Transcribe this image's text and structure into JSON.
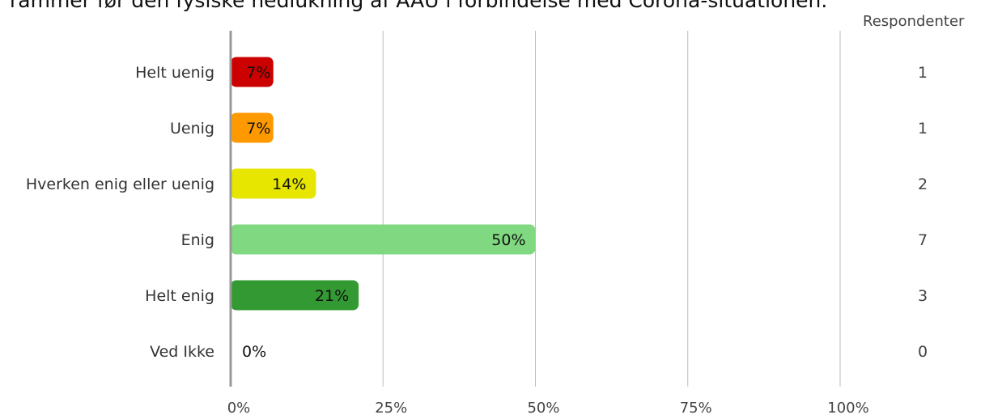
{
  "chart_data": {
    "type": "bar",
    "orientation": "horizontal",
    "title": "rammer før den fysiske nedlukning af AAU i forbindelse med Corona-situationen.",
    "categories": [
      "Helt uenig",
      "Uenig",
      "Hverken enig eller uenig",
      "Enig",
      "Helt enig",
      "Ved Ikke"
    ],
    "values": [
      7,
      7,
      14,
      50,
      21,
      0
    ],
    "value_labels": [
      "7%",
      "7%",
      "14%",
      "50%",
      "21%",
      "0%"
    ],
    "respondents": [
      1,
      1,
      2,
      7,
      3,
      0
    ],
    "respondents_header": "Respondenter",
    "x_ticks": [
      "0%",
      "25%",
      "50%",
      "75%",
      "100%"
    ],
    "x_tick_values": [
      0,
      25,
      50,
      75,
      100
    ],
    "xlim": [
      0,
      100
    ],
    "grid": true,
    "colors": [
      "#cc0000",
      "#ff9900",
      "#e6e600",
      "#80d880",
      "#339933",
      "#cccccc"
    ]
  }
}
